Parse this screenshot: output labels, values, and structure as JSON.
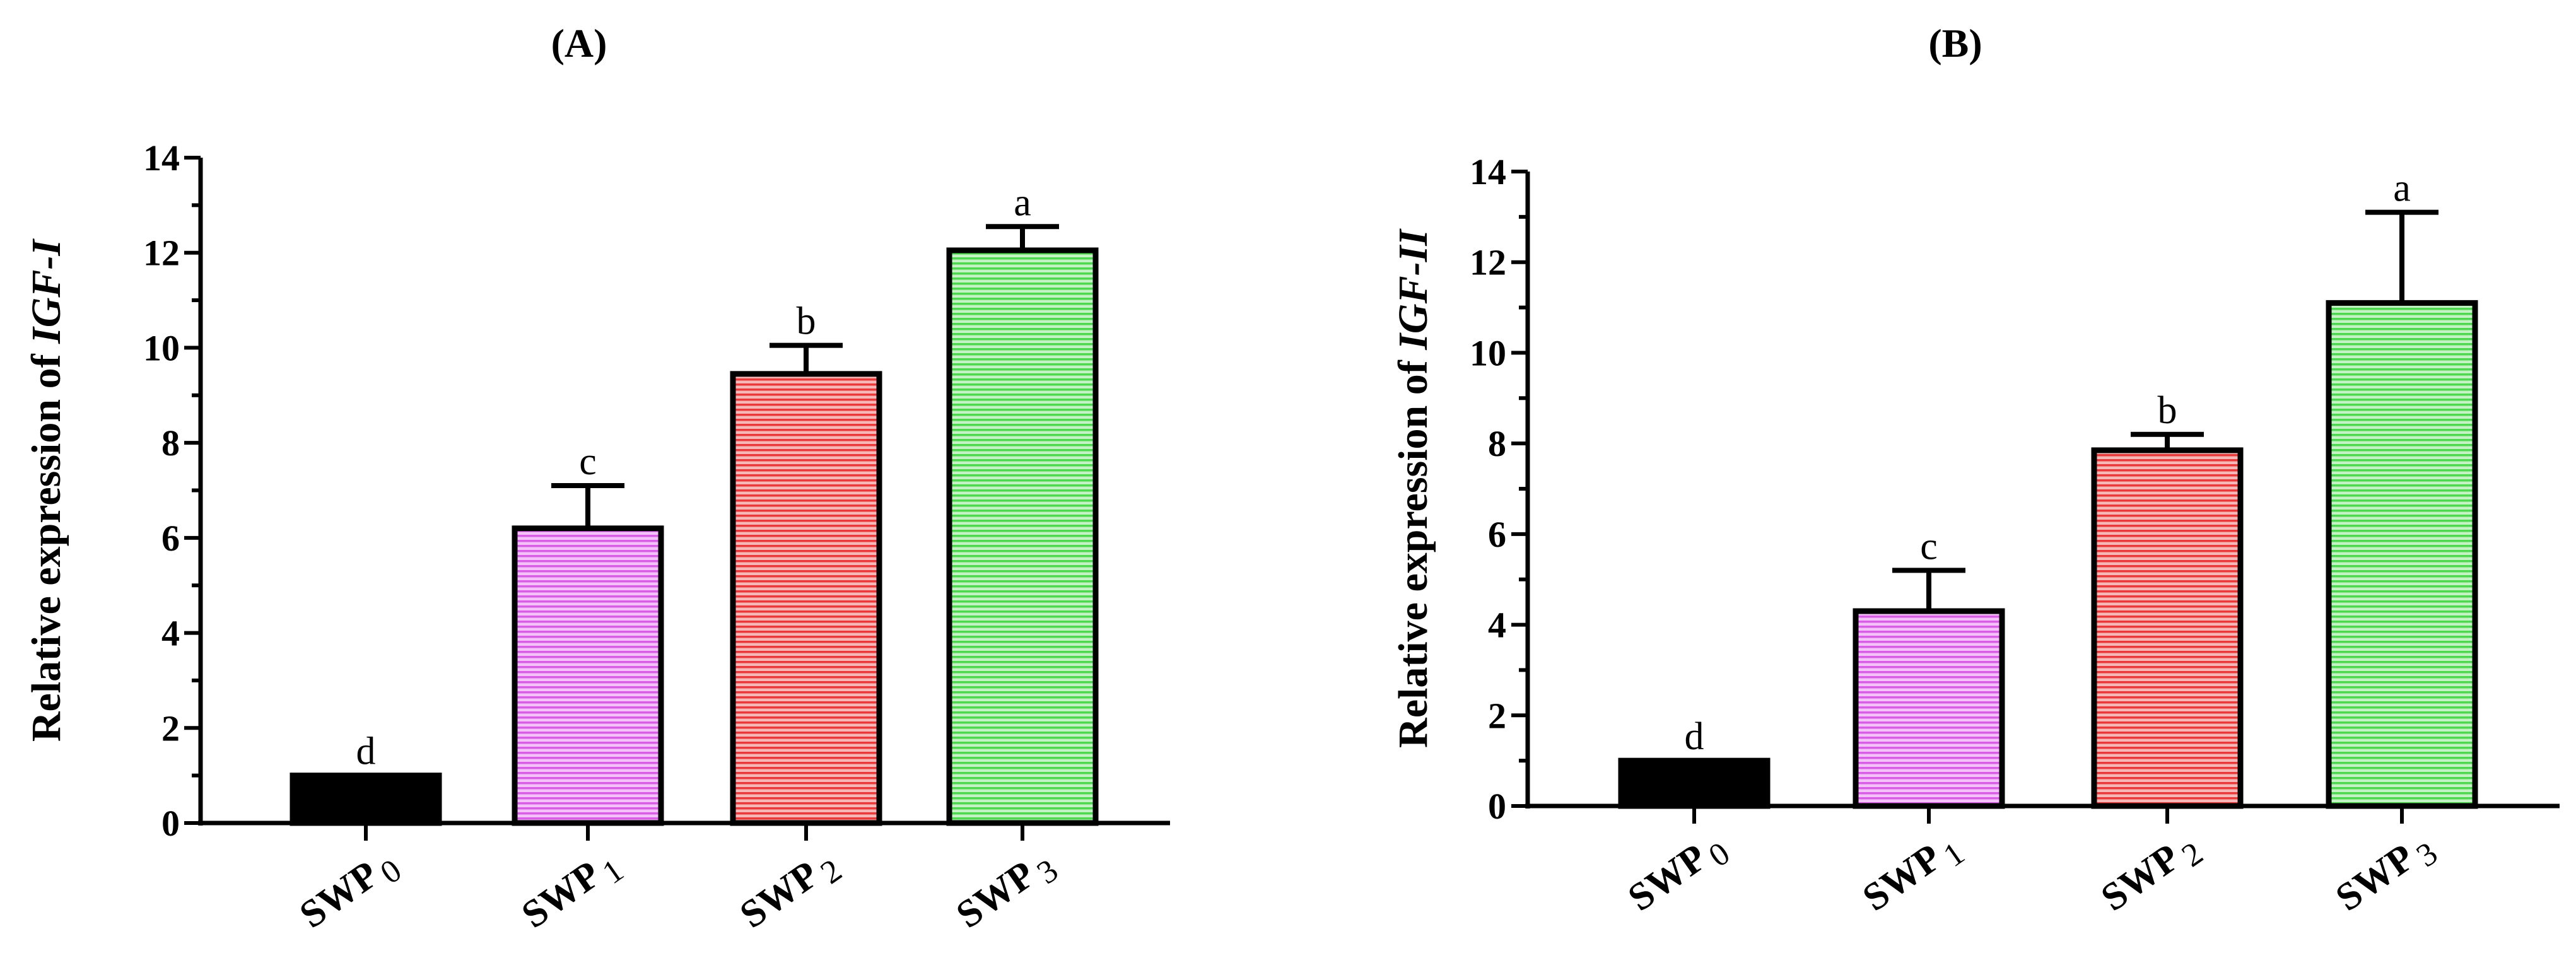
{
  "chart_data": [
    {
      "type": "bar",
      "panel_label": "(A)",
      "ylabel_prefix": "Relative expression of ",
      "ylabel_gene": "IGF-I",
      "ylim": [
        0,
        14
      ],
      "yticks": [
        "0",
        "2",
        "4",
        "6",
        "8",
        "10",
        "12",
        "14"
      ],
      "categories": [
        {
          "base": "SWP",
          "sub": "0"
        },
        {
          "base": "SWP",
          "sub": "1"
        },
        {
          "base": "SWP",
          "sub": "2"
        },
        {
          "base": "SWP",
          "sub": "3"
        }
      ],
      "values": [
        1.0,
        6.2,
        9.45,
        12.05
      ],
      "errors": [
        0.0,
        0.9,
        0.6,
        0.5
      ],
      "significance": [
        "d",
        "c",
        "b",
        "a"
      ],
      "colors": [
        "#000000",
        "#e36af0",
        "#ee3b3b",
        "#55e055"
      ],
      "grid": false
    },
    {
      "type": "bar",
      "panel_label": "(B)",
      "ylabel_prefix": "Relative expression of ",
      "ylabel_gene": "IGF-II",
      "ylim": [
        0,
        14
      ],
      "yticks": [
        "0",
        "2",
        "4",
        "6",
        "8",
        "10",
        "12",
        "14"
      ],
      "categories": [
        {
          "base": "SWP",
          "sub": "0"
        },
        {
          "base": "SWP",
          "sub": "1"
        },
        {
          "base": "SWP",
          "sub": "2"
        },
        {
          "base": "SWP",
          "sub": "3"
        }
      ],
      "values": [
        1.0,
        4.3,
        7.85,
        11.1
      ],
      "errors": [
        0.0,
        0.9,
        0.35,
        2.0
      ],
      "significance": [
        "d",
        "c",
        "b",
        "a"
      ],
      "colors": [
        "#000000",
        "#e36af0",
        "#ee3b3b",
        "#55e055"
      ],
      "grid": false
    }
  ]
}
